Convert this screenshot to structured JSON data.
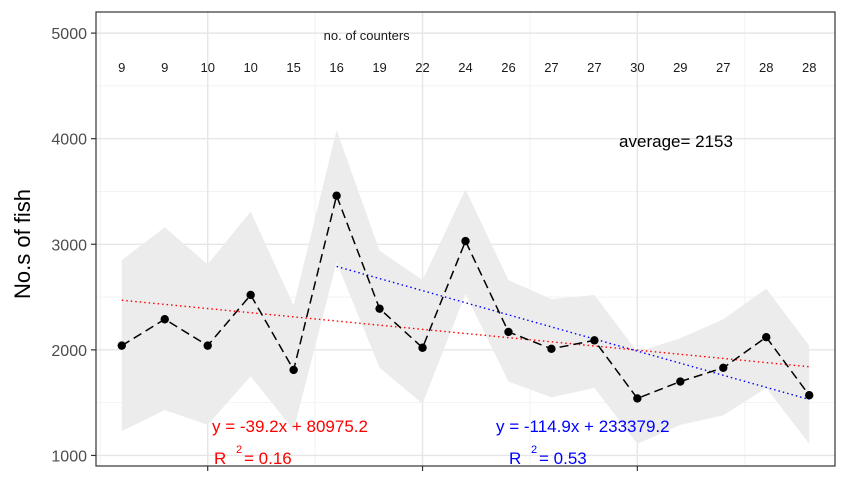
{
  "chart_data": {
    "type": "line",
    "title": "",
    "xlabel": "",
    "ylabel": "No.s of fish",
    "ylim": [
      900,
      5200
    ],
    "xlim": [
      0.4,
      17.6
    ],
    "yticks": [
      1000,
      2000,
      3000,
      4000,
      5000
    ],
    "ytick_labels": [
      "1000",
      "2000",
      "3000",
      "4000",
      "5000"
    ],
    "xticks": [
      3,
      8,
      13
    ],
    "grid": true,
    "x": [
      1,
      2,
      3,
      4,
      5,
      6,
      7,
      8,
      9,
      10,
      11,
      12,
      13,
      14,
      15,
      16,
      17
    ],
    "series": [
      {
        "values": [
          2040,
          2290,
          2040,
          2520,
          1810,
          3460,
          2390,
          2020,
          3030,
          2170,
          2010,
          2090,
          1540,
          1700,
          1830,
          2120,
          1570
        ],
        "color": "#000000",
        "style": "dashed-with-points"
      }
    ],
    "band": {
      "upper": [
        2850,
        3160,
        2810,
        3310,
        2420,
        4080,
        2940,
        2660,
        3520,
        2660,
        2480,
        2520,
        1980,
        2110,
        2290,
        2580,
        2040
      ],
      "lower": [
        1230,
        1430,
        1290,
        1750,
        1240,
        2830,
        1830,
        1490,
        2530,
        1700,
        1550,
        1640,
        1110,
        1290,
        1380,
        1640,
        1110
      ],
      "color": "#ebebeb"
    },
    "trendlines": [
      {
        "x_from": 1,
        "x_to": 17,
        "y_from": 2470,
        "y_to": 1840,
        "color": "#ff0000",
        "style": "dotted",
        "equation": "y = -39.2x + 80975.2",
        "r2": "= 0.16"
      },
      {
        "x_from": 6,
        "x_to": 17,
        "y_from": 2790,
        "y_to": 1530,
        "color": "#0000ff",
        "style": "dotted",
        "equation": "y = -114.9x + 233379.2",
        "r2": "= 0.53"
      }
    ],
    "counters_title": "no. of counters",
    "counters": [
      "9",
      "9",
      "10",
      "10",
      "15",
      "16",
      "19",
      "22",
      "24",
      "26",
      "27",
      "27",
      "30",
      "29",
      "27",
      "28",
      "28"
    ],
    "average_label": "average= 2153",
    "r_symbol": "R",
    "r_exp": "2"
  }
}
